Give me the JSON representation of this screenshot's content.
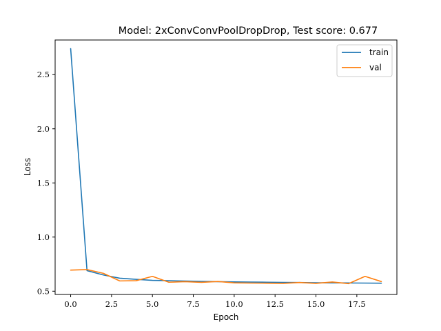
{
  "chart_data": {
    "type": "line",
    "title": "Model: 2xConvConvPoolDropDrop, Test score: 0.677",
    "xlabel": "Epoch",
    "ylabel": "Loss",
    "xlim": [
      -0.95,
      19.95
    ],
    "ylim": [
      0.47,
      2.82
    ],
    "xticks": [
      0,
      2.5,
      5,
      7.5,
      10,
      12.5,
      15,
      17.5
    ],
    "xtick_labels": [
      "0.0",
      "2.5",
      "5.0",
      "7.5",
      "10.0",
      "12.5",
      "15.0",
      "17.5"
    ],
    "yticks": [
      0.5,
      1.0,
      1.5,
      2.0,
      2.5
    ],
    "ytick_labels": [
      "0.5",
      "1.0",
      "1.5",
      "2.0",
      "2.5"
    ],
    "grid": false,
    "legend_position": "top-right",
    "x": [
      0,
      1,
      2,
      3,
      4,
      5,
      6,
      7,
      8,
      9,
      10,
      11,
      12,
      13,
      14,
      15,
      16,
      17,
      18,
      19
    ],
    "series": [
      {
        "name": "train",
        "color": "#1f77b4",
        "values": [
          2.74,
          0.69,
          0.65,
          0.62,
          0.61,
          0.6,
          0.597,
          0.594,
          0.591,
          0.588,
          0.586,
          0.584,
          0.583,
          0.581,
          0.58,
          0.578,
          0.577,
          0.576,
          0.575,
          0.574
        ]
      },
      {
        "name": "val",
        "color": "#ff7f0e",
        "values": [
          0.695,
          0.7,
          0.665,
          0.595,
          0.597,
          0.637,
          0.583,
          0.588,
          0.582,
          0.59,
          0.577,
          0.575,
          0.574,
          0.572,
          0.58,
          0.572,
          0.585,
          0.57,
          0.637,
          0.589
        ]
      }
    ]
  }
}
